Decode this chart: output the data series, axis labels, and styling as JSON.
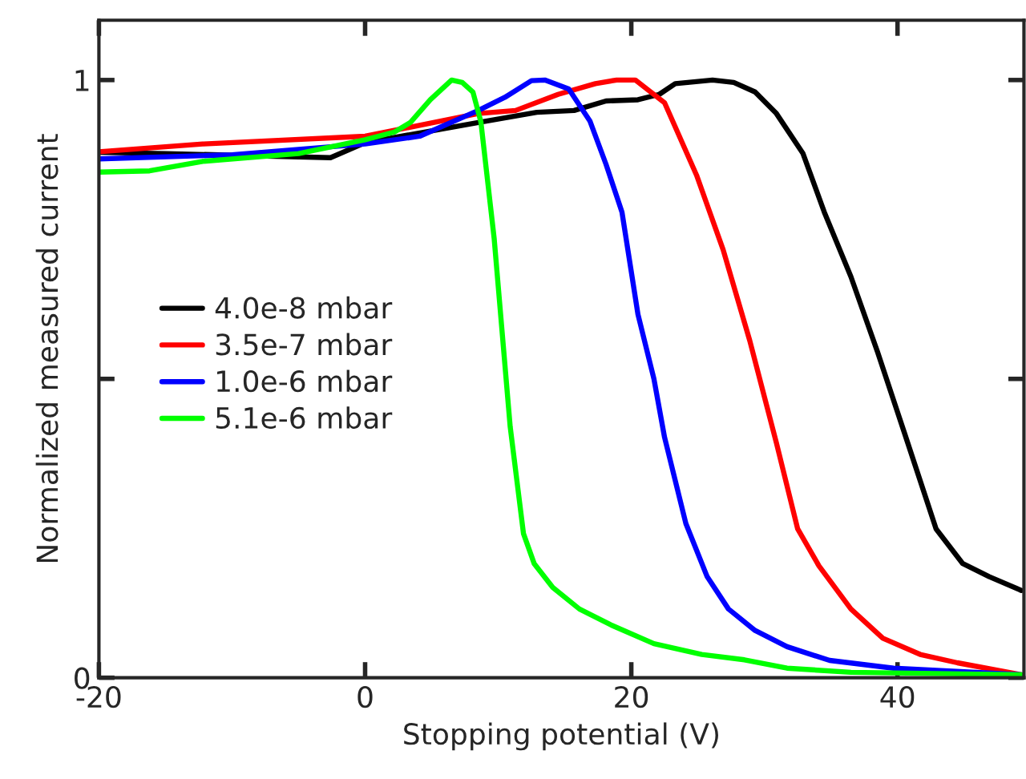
{
  "chart_data": {
    "type": "line",
    "xlabel": "Stopping potential (V)",
    "ylabel": "Normalized measured current",
    "xlim": [
      -20,
      49.5
    ],
    "ylim": [
      0,
      1.1
    ],
    "xticks": [
      -20,
      0,
      20,
      40
    ],
    "yticks": [
      0,
      {
        "value": 0.5,
        "label": null
      },
      1
    ],
    "grid": false,
    "legend": "left",
    "line_style": "solid",
    "marker": "none",
    "series": [
      {
        "name": "4.0e-8 mbar",
        "color": "#000000",
        "x": [
          -20,
          -15,
          -2.6,
          0,
          8.5,
          12.9,
          15.7,
          18.1,
          20.5,
          22.1,
          23.3,
          26.1,
          27.7,
          29.3,
          30.9,
          32.9,
          34.5,
          36.5,
          38.5,
          40.5,
          42.9,
          44.9,
          46.9,
          49.3
        ],
        "values": [
          0.879,
          0.877,
          0.87,
          0.895,
          0.929,
          0.946,
          0.949,
          0.965,
          0.967,
          0.976,
          0.994,
          1.0,
          0.996,
          0.98,
          0.944,
          0.877,
          0.779,
          0.671,
          0.545,
          0.411,
          0.249,
          0.191,
          0.169,
          0.146
        ]
      },
      {
        "name": "3.5e-7 mbar",
        "color": "#ff0000",
        "x": [
          -20,
          -12.2,
          0,
          8.5,
          11.3,
          14.5,
          17.3,
          18.9,
          20.3,
          22.5,
          24.9,
          26.9,
          28.9,
          30.9,
          32.5,
          34.1,
          36.5,
          38.9,
          41.7,
          44.5,
          49.3
        ],
        "values": [
          0.88,
          0.893,
          0.906,
          0.944,
          0.949,
          0.976,
          0.994,
          1.0,
          1.0,
          0.962,
          0.841,
          0.716,
          0.564,
          0.393,
          0.249,
          0.187,
          0.115,
          0.066,
          0.039,
          0.025,
          0.005
        ]
      },
      {
        "name": "1.0e-6 mbar",
        "color": "#0000ff",
        "x": [
          -20,
          -10,
          0,
          4.1,
          8.5,
          10.5,
          12.5,
          13.5,
          15.3,
          16.9,
          18.1,
          19.3,
          20.5,
          21.7,
          22.5,
          24.1,
          25.7,
          27.3,
          29.3,
          31.7,
          34.9,
          39.7,
          49.3
        ],
        "values": [
          0.868,
          0.875,
          0.893,
          0.906,
          0.949,
          0.971,
          0.999,
          1.0,
          0.985,
          0.931,
          0.859,
          0.779,
          0.608,
          0.5,
          0.402,
          0.258,
          0.169,
          0.115,
          0.079,
          0.052,
          0.029,
          0.016,
          0.005
        ]
      },
      {
        "name": "5.1e-6 mbar",
        "color": "#00ff00",
        "x": [
          -20,
          -16.2,
          -12.2,
          -5.0,
          0,
          2.2,
          3.4,
          4.9,
          6.5,
          7.3,
          8.1,
          8.7,
          9.7,
          10.9,
          11.9,
          12.7,
          14.1,
          16.1,
          18.5,
          21.7,
          25.3,
          28.5,
          31.7,
          36.5,
          49.3
        ],
        "values": [
          0.846,
          0.848,
          0.864,
          0.877,
          0.9,
          0.913,
          0.929,
          0.967,
          1.0,
          0.996,
          0.98,
          0.93,
          0.734,
          0.42,
          0.241,
          0.191,
          0.151,
          0.115,
          0.088,
          0.057,
          0.039,
          0.03,
          0.016,
          0.009,
          0.005
        ]
      }
    ]
  }
}
